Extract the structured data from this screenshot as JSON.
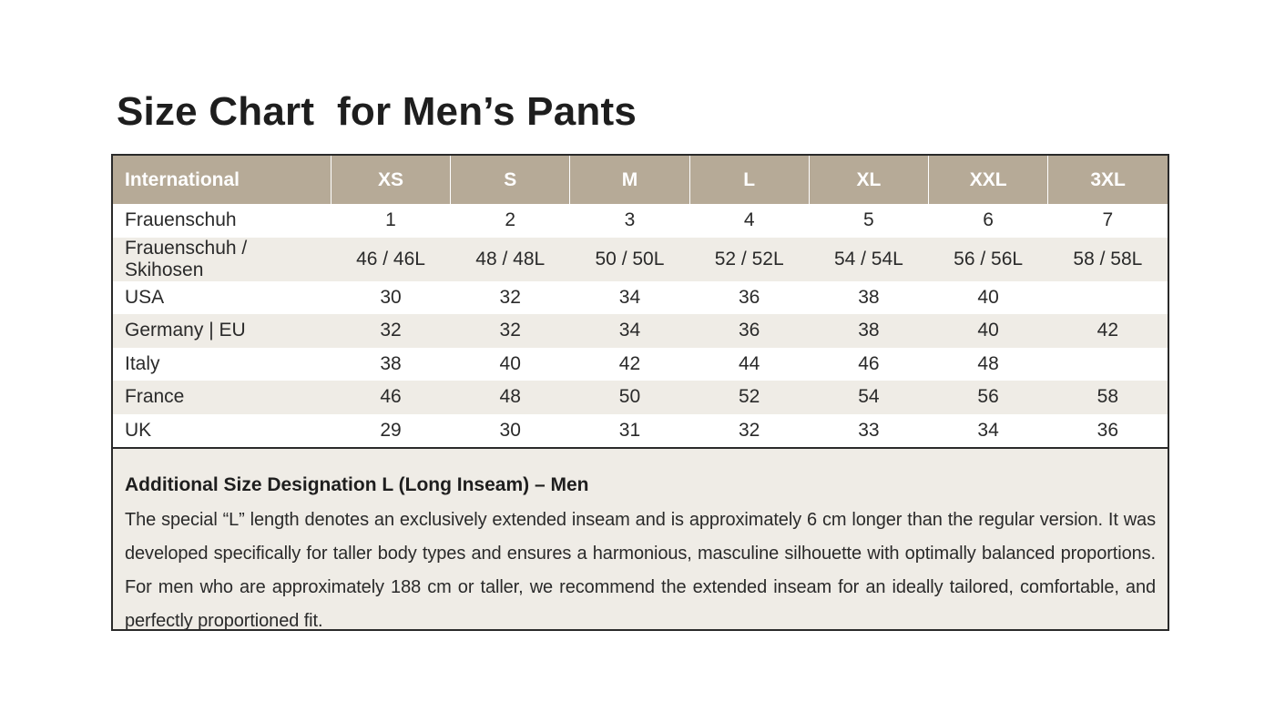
{
  "title": "Size Chart  for Men’s Pants",
  "table": {
    "headers": [
      "International",
      "XS",
      "S",
      "M",
      "L",
      "XL",
      "XXL",
      "3XL"
    ],
    "rows": [
      [
        "Frauenschuh",
        "1",
        "2",
        "3",
        "4",
        "5",
        "6",
        "7"
      ],
      [
        "Frauenschuh / Skihosen",
        "46 / 46L",
        "48 / 48L",
        "50 / 50L",
        "52 / 52L",
        "54 / 54L",
        "56 / 56L",
        "58 / 58L"
      ],
      [
        "USA",
        "30",
        "32",
        "34",
        "36",
        "38",
        "40",
        ""
      ],
      [
        "Germany | EU",
        "32",
        "32",
        "34",
        "36",
        "38",
        "40",
        "42"
      ],
      [
        "Italy",
        "38",
        "40",
        "42",
        "44",
        "46",
        "48",
        ""
      ],
      [
        "France",
        "46",
        "48",
        "50",
        "52",
        "54",
        "56",
        "58"
      ],
      [
        "UK",
        "29",
        "30",
        "31",
        "32",
        "33",
        "34",
        "36"
      ]
    ]
  },
  "note": {
    "heading": "Additional Size Designation L (Long Inseam) – Men",
    "text": "The special “L” length denotes an exclusively extended inseam and is approximately 6 cm longer than the regular version. It was developed specifically for taller body types and ensures a harmonious, masculine silhouette with optimally balanced proportions. For men who are approximately 188 cm or taller, we recommend the extended inseam for an ideally tailored, comfortable, and perfectly proportioned fit."
  },
  "colors": {
    "header_background": "#b6aa97",
    "header_text": "#ffffff",
    "stripe_background": "#efece6",
    "border": "#2a2a2a"
  }
}
